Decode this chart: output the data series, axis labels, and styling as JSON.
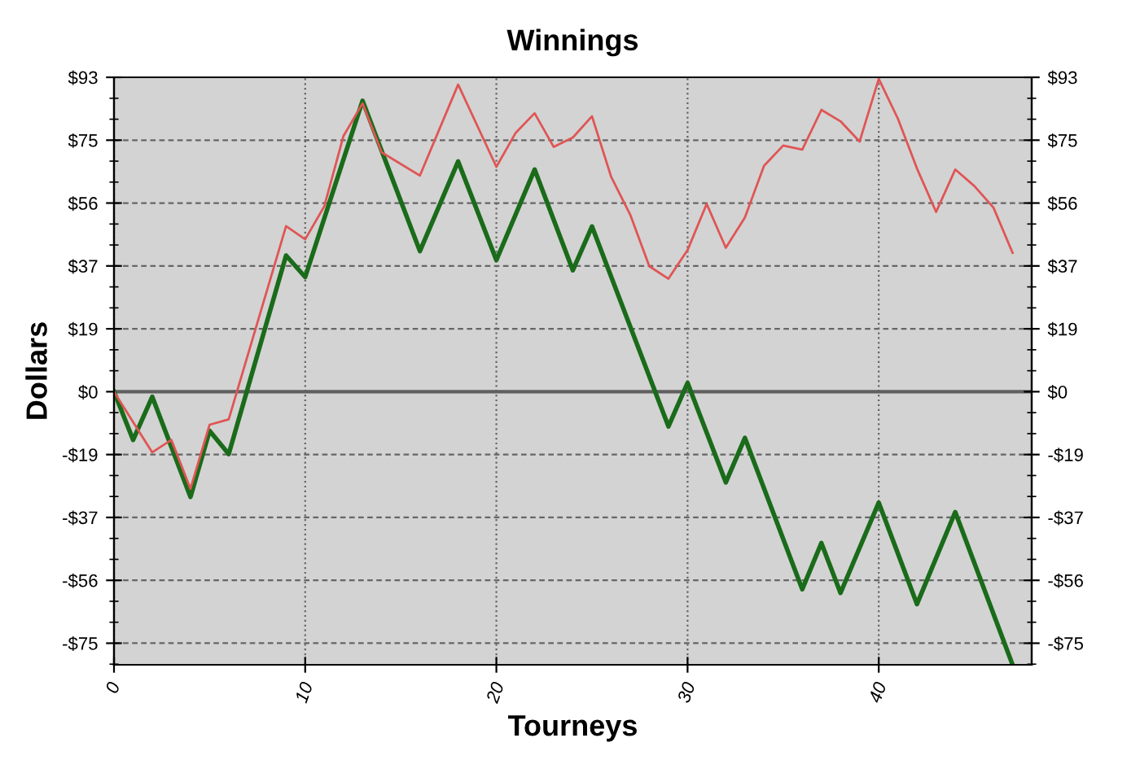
{
  "chart_data": {
    "type": "line",
    "title": "Winnings",
    "xlabel": "Tourneys",
    "ylabel": "Dollars",
    "xlim": [
      0,
      48
    ],
    "xticks": [
      0,
      10,
      20,
      30,
      40
    ],
    "ylim": [
      -81,
      93.25
    ],
    "yticks": [
      {
        "value": -74.6,
        "label": "-$75"
      },
      {
        "value": -55.95,
        "label": "-$56"
      },
      {
        "value": -37.3,
        "label": "-$37"
      },
      {
        "value": -18.65,
        "label": "-$19"
      },
      {
        "value": 0,
        "label": "$0"
      },
      {
        "value": 18.65,
        "label": "$19"
      },
      {
        "value": 37.3,
        "label": "$37"
      },
      {
        "value": 55.95,
        "label": "$56"
      },
      {
        "value": 74.6,
        "label": "$75"
      },
      {
        "value": 93.25,
        "label": "$93"
      }
    ],
    "y2lim": [
      -81,
      93.25
    ],
    "y2ticks": [
      {
        "value": -74.6,
        "label": "-$75"
      },
      {
        "value": -55.95,
        "label": "-$56"
      },
      {
        "value": -37.3,
        "label": "-$37"
      },
      {
        "value": -18.65,
        "label": "-$19"
      },
      {
        "value": 0,
        "label": "$0"
      },
      {
        "value": 18.65,
        "label": "$19"
      },
      {
        "value": 37.3,
        "label": "$37"
      },
      {
        "value": 55.95,
        "label": "$56"
      },
      {
        "value": 74.6,
        "label": "$75"
      },
      {
        "value": 93.25,
        "label": "$93"
      }
    ],
    "grid": true,
    "marker": "none",
    "line_style": "solid",
    "ref_lines": [
      {
        "axis": "y",
        "value": 0,
        "color": "#606060"
      }
    ],
    "series": [
      {
        "color": "#e05555",
        "x": [
          0,
          1,
          2,
          3,
          4,
          5,
          6,
          9,
          10,
          11,
          12,
          13,
          14,
          16,
          18,
          20,
          21,
          22,
          23,
          24,
          25,
          26,
          27,
          28,
          29,
          30,
          31,
          32,
          33,
          34,
          35,
          36,
          37,
          38,
          39,
          40,
          41,
          42,
          43,
          44,
          45,
          46,
          47
        ],
        "values": [
          0,
          -9,
          -18,
          -14.3,
          -28.8,
          -9.8,
          -8.2,
          49.1,
          45.2,
          55,
          75.8,
          85.5,
          71,
          64.1,
          91.1,
          66.7,
          76.7,
          82.6,
          72.6,
          75.4,
          81.7,
          63.8,
          52.5,
          37.2,
          33.5,
          42,
          55.7,
          42.7,
          51.7,
          67,
          73,
          71.8,
          83.6,
          80.2,
          74.2,
          92.8,
          81,
          66.2,
          53.3,
          65.9,
          61,
          54.6,
          41.2
        ]
      },
      {
        "color": "#1a6b1a",
        "x": [
          0,
          1,
          2,
          4,
          5,
          6,
          9,
          10,
          13,
          16,
          18,
          20,
          22,
          24,
          25,
          29,
          30,
          32,
          33,
          36,
          37,
          38,
          40,
          42,
          44,
          47
        ],
        "values": [
          0,
          -14.3,
          -1.5,
          -31.2,
          -11.6,
          -18.5,
          40.4,
          34,
          86.3,
          41.7,
          68.3,
          39,
          65.9,
          36,
          49,
          -10.3,
          2.6,
          -26.9,
          -13.7,
          -58.6,
          -44.9,
          -59.7,
          -32.9,
          -63,
          -35.7,
          -81
        ]
      }
    ]
  }
}
